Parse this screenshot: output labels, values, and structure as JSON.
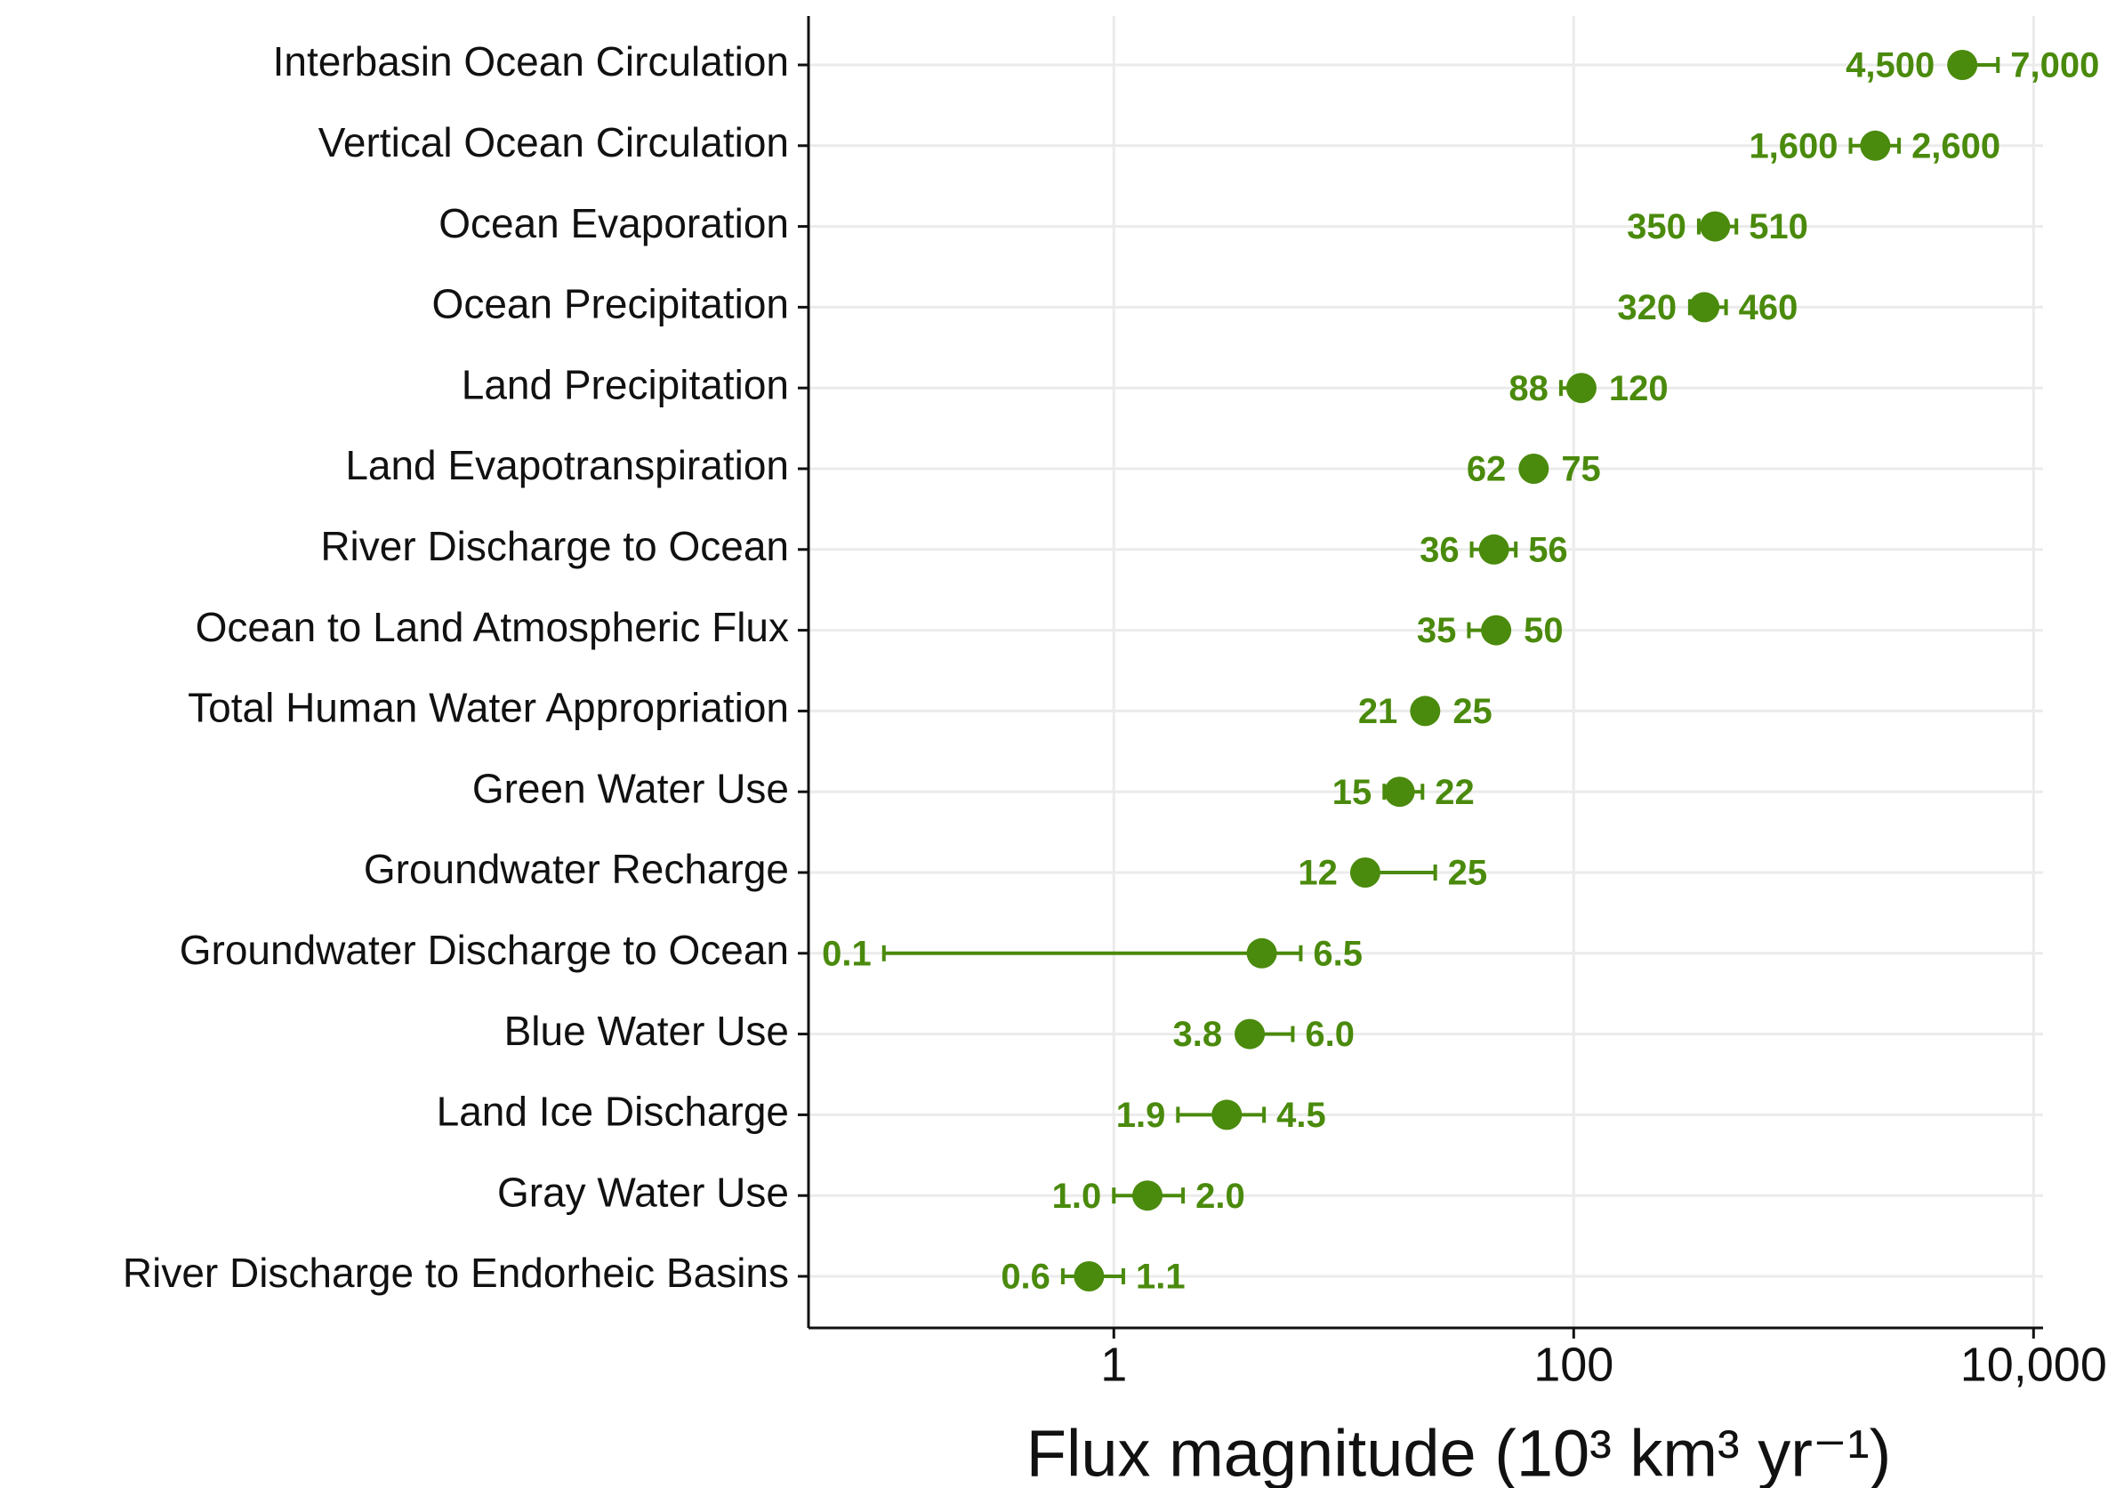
{
  "chart_data": {
    "type": "dot_range",
    "xlabel": "Flux magnitude (10³ km³ yr⁻¹)",
    "categories": [
      "Interbasin Ocean Circulation",
      "Vertical Ocean Circulation",
      "Ocean Evaporation",
      "Ocean Precipitation",
      "Land Precipitation",
      "Land Evapotranspiration",
      "River Discharge to Ocean",
      "Ocean to Land Atmospheric Flux",
      "Total Human Water Appropriation",
      "Green Water Use",
      "Groundwater Recharge",
      "Groundwater Discharge to Ocean",
      "Blue Water Use",
      "Land Ice Discharge",
      "Gray Water Use",
      "River Discharge to Endorheic Basins"
    ],
    "values": [
      4900,
      2050,
      412,
      370,
      108,
      67,
      45,
      46,
      22.6,
      17.5,
      12.4,
      4.4,
      3.9,
      3.1,
      1.4,
      0.78
    ],
    "low": [
      4500,
      1600,
      350,
      320,
      88,
      62,
      36,
      35,
      21,
      15,
      12,
      0.1,
      3.8,
      1.9,
      1.0,
      0.6
    ],
    "low_labels": [
      "4,500",
      "1,600",
      "350",
      "320",
      "88",
      "62",
      "36",
      "35",
      "21",
      "15",
      "12",
      "0.1",
      "3.8",
      "1.9",
      "1.0",
      "0.6"
    ],
    "high": [
      7000,
      2600,
      510,
      460,
      120,
      75,
      56,
      50,
      25,
      22,
      25,
      6.5,
      6.0,
      4.5,
      2.0,
      1.1
    ],
    "high_labels": [
      "7,000",
      "2,600",
      "510",
      "460",
      "120",
      "75",
      "56",
      "50",
      "25",
      "22",
      "25",
      "6.5",
      "6.0",
      "4.5",
      "2.0",
      "1.1"
    ],
    "color": "#4a8a0c",
    "xscale": "log",
    "xlim": [
      0.047,
      11000
    ],
    "xticks": [
      1,
      100,
      {
        "value": 10000,
        "label": "10,000"
      }
    ],
    "grid": true
  }
}
